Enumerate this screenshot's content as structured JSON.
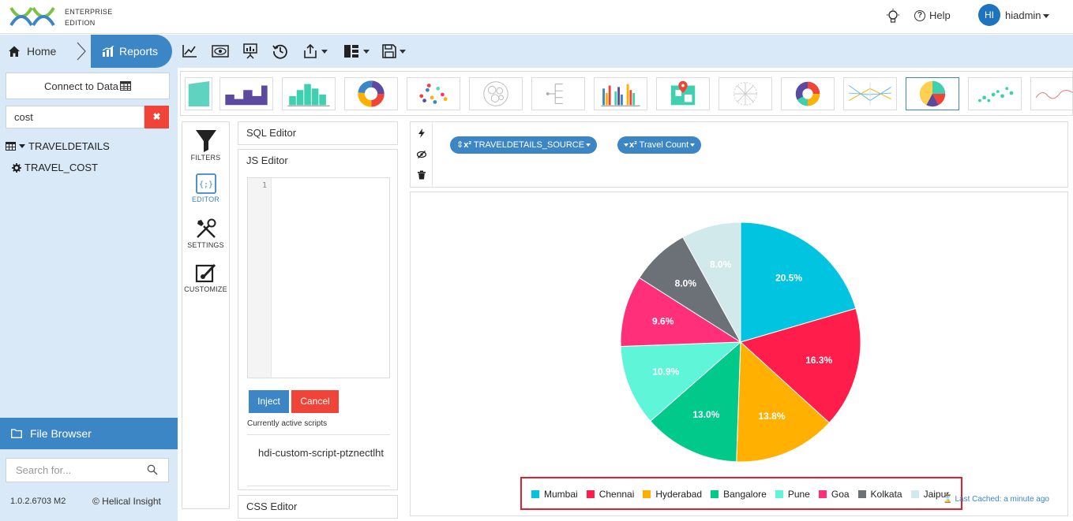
{
  "header": {
    "edition_line1": "ENTERPRISE",
    "edition_line2": "EDITION",
    "help_label": "Help",
    "avatar_initials": "HI",
    "username": "hiadmin"
  },
  "breadcrumb": {
    "home_label": "Home",
    "reports_label": "Reports"
  },
  "toolbar_icons": [
    "line-chart-icon",
    "preview-icon",
    "presentation-icon",
    "history-icon",
    "export-icon",
    "layout-icon",
    "save-icon"
  ],
  "sidebar": {
    "connect_label": "Connect to Data",
    "search_value": "cost",
    "tree_table": "TRAVELDETAILS",
    "tree_field": "TRAVEL_COST",
    "file_browser_label": "File Browser",
    "search_files_placeholder": "Search for...",
    "version": "1.0.2.6703 M2",
    "copyright": "© Helical Insight"
  },
  "tools": {
    "filters": "FILTERS",
    "editor": "EDITOR",
    "settings": "SETTINGS",
    "customize": "CUSTOMIZE"
  },
  "editors": {
    "sql_label": "SQL Editor",
    "js_label": "JS Editor",
    "line_number": "1",
    "inject_label": "Inject",
    "cancel_label": "Cancel",
    "scripts_label": "Currently active scripts",
    "script_name": "hdi-custom-script-ptznectlht",
    "css_label": "CSS Editor"
  },
  "fields": {
    "dimension_label": "TRAVELDETAILS_SOURCE",
    "measure_label": "Travel Count",
    "power_label": "x²"
  },
  "last_cached": "Last Cached: a minute ago",
  "chart_data": {
    "type": "pie",
    "categories": [
      "Mumbai",
      "Chennai",
      "Hyderabad",
      "Bangalore",
      "Pune",
      "Goa",
      "Kolkata",
      "Jaipur"
    ],
    "values": [
      20.5,
      16.3,
      13.8,
      13.0,
      10.9,
      9.6,
      8.0,
      8.0
    ],
    "labels": [
      "20.5%",
      "16.3%",
      "13.8%",
      "13.0%",
      "10.9%",
      "9.6%",
      "8.0%",
      "8.0%"
    ],
    "colors": [
      "#00c4e0",
      "#ff1e4b",
      "#ffb000",
      "#00c98a",
      "#5ef5d8",
      "#ff2f7a",
      "#6c7177",
      "#d2e9ec"
    ],
    "legend_position": "bottom",
    "title": ""
  }
}
